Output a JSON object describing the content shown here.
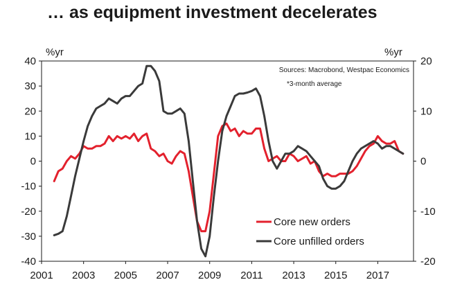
{
  "chart_data": {
    "type": "line",
    "title": "… as equipment investment decelerates",
    "left_axis_unit": "%yr",
    "right_axis_unit": "%yr",
    "source_note": "Sources: Macrobond, Westpac Economics",
    "footnote": "*3-month average",
    "xlim": [
      2001,
      2018.7
    ],
    "x_ticks": [
      "2001",
      "2003",
      "2005",
      "2007",
      "2009",
      "2011",
      "2013",
      "2015",
      "2017"
    ],
    "ylim_left": [
      -40,
      40
    ],
    "y_ticks_left": [
      "40",
      "30",
      "20",
      "10",
      "0",
      "-10",
      "-20",
      "-30",
      "-40"
    ],
    "ylim_right": [
      -20,
      20
    ],
    "y_ticks_right": [
      "20",
      "10",
      "0",
      "-10",
      "-20"
    ],
    "legend_position": "bottom-right",
    "series": [
      {
        "name": "Core new orders",
        "color": "#e3212d",
        "axis": "left",
        "x": [
          2001.6,
          2001.8,
          2002.0,
          2002.2,
          2002.4,
          2002.6,
          2002.8,
          2003.0,
          2003.2,
          2003.4,
          2003.6,
          2003.8,
          2004.0,
          2004.2,
          2004.4,
          2004.6,
          2004.8,
          2005.0,
          2005.2,
          2005.4,
          2005.6,
          2005.8,
          2006.0,
          2006.2,
          2006.4,
          2006.6,
          2006.8,
          2007.0,
          2007.2,
          2007.4,
          2007.6,
          2007.8,
          2008.0,
          2008.2,
          2008.4,
          2008.6,
          2008.8,
          2009.0,
          2009.2,
          2009.4,
          2009.6,
          2009.8,
          2010.0,
          2010.2,
          2010.4,
          2010.6,
          2010.8,
          2011.0,
          2011.2,
          2011.4,
          2011.6,
          2011.8,
          2012.0,
          2012.2,
          2012.4,
          2012.6,
          2012.8,
          2013.0,
          2013.2,
          2013.4,
          2013.6,
          2013.8,
          2014.0,
          2014.2,
          2014.4,
          2014.6,
          2014.8,
          2015.0,
          2015.2,
          2015.4,
          2015.6,
          2015.8,
          2016.0,
          2016.2,
          2016.4,
          2016.6,
          2016.8,
          2017.0,
          2017.2,
          2017.4,
          2017.6,
          2017.8,
          2018.0,
          2018.2
        ],
        "values": [
          -8,
          -4,
          -3,
          0,
          2,
          1,
          3,
          6,
          5,
          5,
          6,
          6,
          7,
          10,
          8,
          10,
          9,
          10,
          9,
          11,
          8,
          10,
          11,
          5,
          4,
          2,
          3,
          0,
          -1,
          2,
          4,
          3,
          -4,
          -14,
          -24,
          -28,
          -28,
          -20,
          -5,
          10,
          14,
          15,
          12,
          13,
          10,
          12,
          11,
          11,
          13,
          13,
          5,
          0,
          1,
          2,
          0,
          0,
          3,
          2,
          0,
          1,
          2,
          -1,
          0,
          -4,
          -6,
          -5,
          -6,
          -6,
          -5,
          -5,
          -5,
          -4,
          -2,
          1,
          4,
          6,
          7,
          10,
          8,
          7,
          7,
          8,
          4,
          3
        ]
      },
      {
        "name": "Core unfilled orders",
        "color": "#3a3a3a",
        "axis": "right",
        "x": [
          2001.6,
          2001.8,
          2002.0,
          2002.2,
          2002.4,
          2002.6,
          2002.8,
          2003.0,
          2003.2,
          2003.4,
          2003.6,
          2003.8,
          2004.0,
          2004.2,
          2004.4,
          2004.6,
          2004.8,
          2005.0,
          2005.2,
          2005.4,
          2005.6,
          2005.8,
          2006.0,
          2006.2,
          2006.4,
          2006.6,
          2006.8,
          2007.0,
          2007.2,
          2007.4,
          2007.6,
          2007.8,
          2008.0,
          2008.2,
          2008.4,
          2008.6,
          2008.8,
          2009.0,
          2009.2,
          2009.4,
          2009.6,
          2009.8,
          2010.0,
          2010.2,
          2010.4,
          2010.6,
          2010.8,
          2011.0,
          2011.2,
          2011.4,
          2011.6,
          2011.8,
          2012.0,
          2012.2,
          2012.4,
          2012.6,
          2012.8,
          2013.0,
          2013.2,
          2013.4,
          2013.6,
          2013.8,
          2014.0,
          2014.2,
          2014.4,
          2014.6,
          2014.8,
          2015.0,
          2015.2,
          2015.4,
          2015.6,
          2015.8,
          2016.0,
          2016.2,
          2016.4,
          2016.6,
          2016.8,
          2017.0,
          2017.2,
          2017.4,
          2017.6,
          2017.8,
          2018.0,
          2018.2
        ],
        "values": [
          -14.8,
          -14.5,
          -14,
          -11,
          -7,
          -3,
          0.5,
          4,
          7,
          9,
          10.5,
          11,
          11.5,
          12.5,
          12,
          11.5,
          12.5,
          13,
          13,
          14,
          15,
          15.5,
          19,
          19,
          18,
          16,
          10,
          9.5,
          9.5,
          10,
          10.5,
          9.5,
          4,
          -4,
          -12,
          -17.5,
          -19,
          -15,
          -7,
          0,
          6,
          9,
          11,
          13,
          13.5,
          13.5,
          13.7,
          14,
          14.5,
          13,
          9,
          4,
          0,
          -1.5,
          0,
          1.5,
          1.5,
          2,
          3,
          2.5,
          2,
          1,
          0,
          -1,
          -3.5,
          -5,
          -5.5,
          -5.5,
          -5,
          -4,
          -2,
          0,
          1.5,
          2.5,
          3,
          3.5,
          4,
          3.5,
          2.5,
          3,
          3,
          2.5,
          2,
          1.5
        ]
      }
    ]
  }
}
